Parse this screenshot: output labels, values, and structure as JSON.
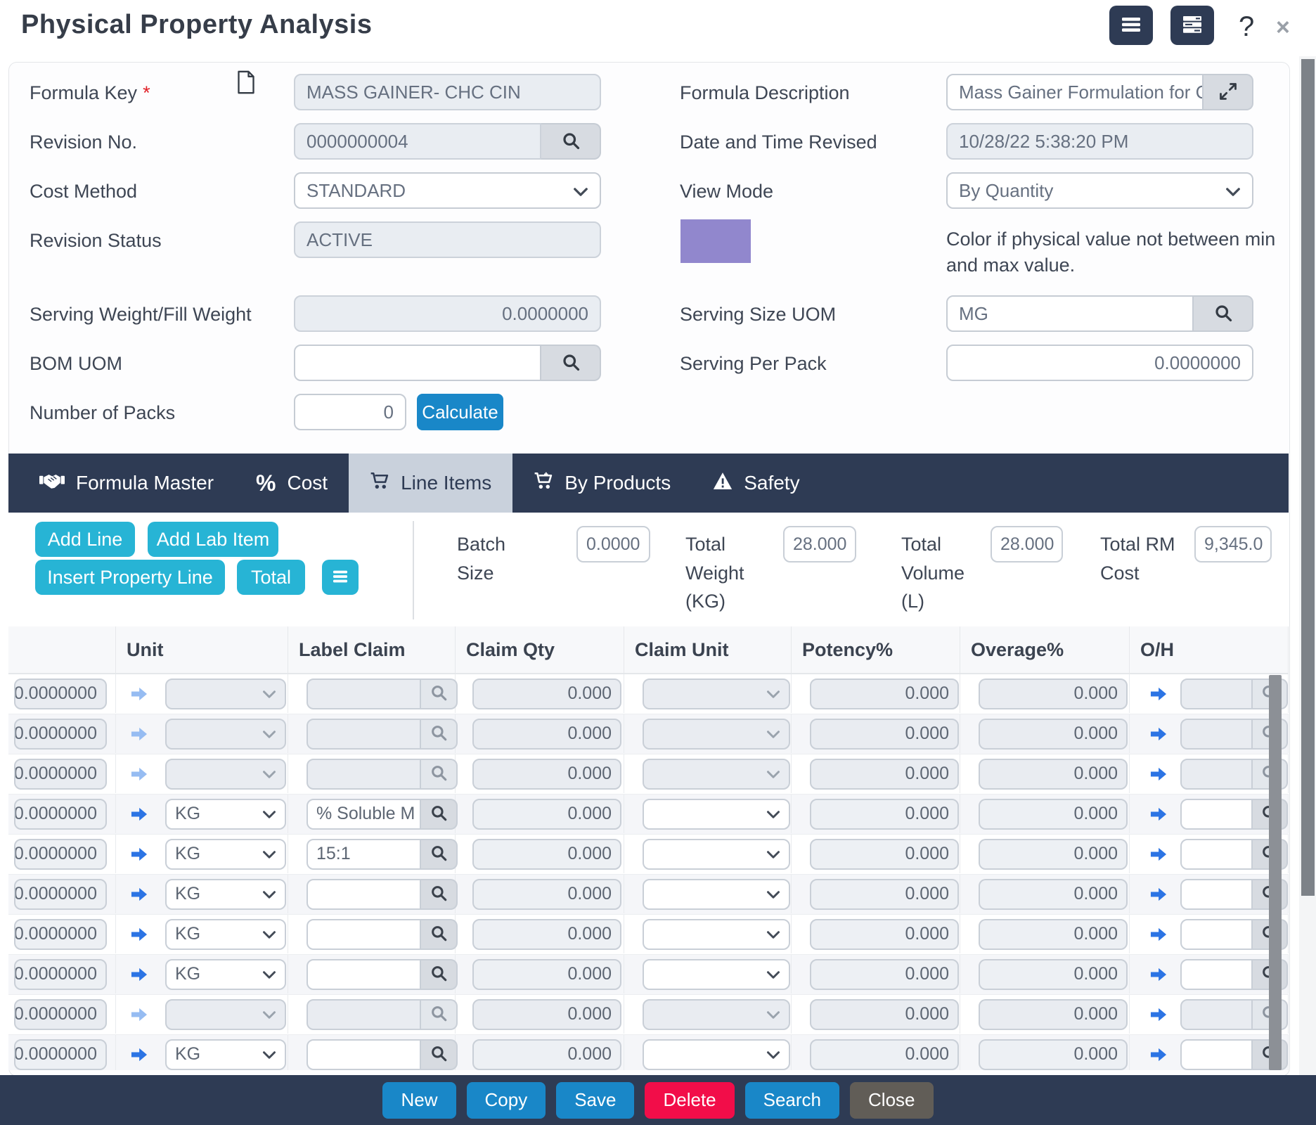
{
  "window": {
    "title": "Physical Property Analysis",
    "help": "?",
    "close": "×"
  },
  "form": {
    "formula_key": {
      "label": "Formula Key",
      "required": "*",
      "value": "MASS GAINER- CHC CIN"
    },
    "formula_description": {
      "label": "Formula Description",
      "value": "Mass Gainer Formulation for C"
    },
    "revision_no": {
      "label": "Revision No.",
      "value": "0000000004"
    },
    "date_time_revised": {
      "label": "Date and Time Revised",
      "value": "10/28/22 5:38:20 PM"
    },
    "cost_method": {
      "label": "Cost Method",
      "value": "STANDARD"
    },
    "view_mode": {
      "label": "View Mode",
      "value": "By Quantity"
    },
    "revision_status": {
      "label": "Revision Status",
      "value": "ACTIVE"
    },
    "color_note": "Color if physical value not between min and max value.",
    "serving_weight": {
      "label": "Serving Weight/Fill Weight",
      "value": "0.0000000"
    },
    "serving_size_uom": {
      "label": "Serving Size UOM",
      "value": "MG"
    },
    "bom_uom": {
      "label": "BOM UOM",
      "value": ""
    },
    "serving_per_pack": {
      "label": "Serving Per Pack",
      "value": "0.0000000"
    },
    "number_of_packs": {
      "label": "Number of Packs",
      "value": "0"
    },
    "calculate_label": "Calculate"
  },
  "tabs": {
    "items": [
      {
        "label": "Formula Master",
        "active": false
      },
      {
        "label": "Cost",
        "active": false
      },
      {
        "label": "Line Items",
        "active": true
      },
      {
        "label": "By Products",
        "active": false
      },
      {
        "label": "Safety",
        "active": false
      }
    ]
  },
  "toolbar": {
    "add_line": "Add Line",
    "add_lab_item": "Add Lab Item",
    "insert_property_line": "Insert Property Line",
    "total": "Total",
    "totals": [
      {
        "label": "Batch Size",
        "value": "0.0000"
      },
      {
        "label": "Total Weight (KG)",
        "value": "28.000"
      },
      {
        "label": "Total Volume (L)",
        "value": "28.000"
      },
      {
        "label": "Total RM Cost",
        "value": "9,345.0"
      }
    ]
  },
  "table": {
    "columns": [
      "",
      "Unit",
      "Label Claim",
      "Claim Qty",
      "Claim Unit",
      "Potency%",
      "Overage%",
      "O/H"
    ],
    "rows": [
      {
        "qty": "0.0000000",
        "unit": "",
        "label_claim": "",
        "claim_qty": "0.000",
        "claim_unit": "",
        "potency": "0.000",
        "overage": "0.000",
        "enabled": false
      },
      {
        "qty": "0.0000000",
        "unit": "",
        "label_claim": "",
        "claim_qty": "0.000",
        "claim_unit": "",
        "potency": "0.000",
        "overage": "0.000",
        "enabled": false
      },
      {
        "qty": "0.0000000",
        "unit": "",
        "label_claim": "",
        "claim_qty": "0.000",
        "claim_unit": "",
        "potency": "0.000",
        "overage": "0.000",
        "enabled": false
      },
      {
        "qty": "0.0000000",
        "unit": "KG",
        "label_claim": "% Soluble M",
        "claim_qty": "0.000",
        "claim_unit": "",
        "potency": "0.000",
        "overage": "0.000",
        "enabled": true
      },
      {
        "qty": "0.0000000",
        "unit": "KG",
        "label_claim": "15:1",
        "claim_qty": "0.000",
        "claim_unit": "",
        "potency": "0.000",
        "overage": "0.000",
        "enabled": true
      },
      {
        "qty": "0.0000000",
        "unit": "KG",
        "label_claim": "",
        "claim_qty": "0.000",
        "claim_unit": "",
        "potency": "0.000",
        "overage": "0.000",
        "enabled": true
      },
      {
        "qty": "0.0000000",
        "unit": "KG",
        "label_claim": "",
        "claim_qty": "0.000",
        "claim_unit": "",
        "potency": "0.000",
        "overage": "0.000",
        "enabled": true
      },
      {
        "qty": "0.0000000",
        "unit": "KG",
        "label_claim": "",
        "claim_qty": "0.000",
        "claim_unit": "",
        "potency": "0.000",
        "overage": "0.000",
        "enabled": true
      },
      {
        "qty": "0.0000000",
        "unit": "",
        "label_claim": "",
        "claim_qty": "0.000",
        "claim_unit": "",
        "potency": "0.000",
        "overage": "0.000",
        "enabled": false
      },
      {
        "qty": "0.0000000",
        "unit": "KG",
        "label_claim": "",
        "claim_qty": "0.000",
        "claim_unit": "",
        "potency": "0.000",
        "overage": "0.000",
        "enabled": true
      }
    ]
  },
  "footer": {
    "buttons": [
      "New",
      "Copy",
      "Save",
      "Delete",
      "Search",
      "Close"
    ]
  },
  "colors": {
    "navy": "#2e3b54",
    "cyan": "#27b4d5",
    "blue": "#1987c8",
    "delete_red": "#f20d49",
    "close_gray": "#615d57",
    "swatch_purple": "#9187cd",
    "active_tab": "#c9d1dc",
    "arrow_blue": "#2c74e4"
  }
}
